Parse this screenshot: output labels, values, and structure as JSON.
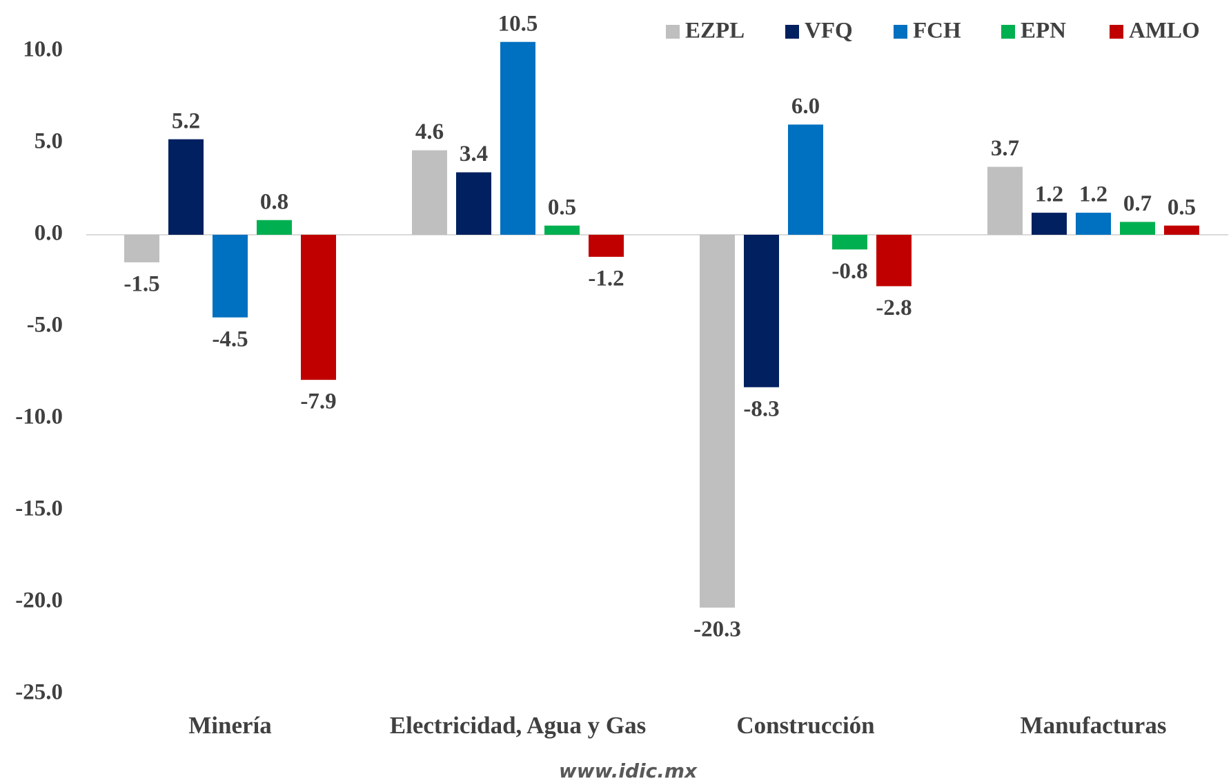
{
  "chart_data": {
    "type": "bar",
    "categories": [
      "Minería",
      "Electricidad, Agua y Gas",
      "Construcción",
      "Manufacturas"
    ],
    "series": [
      {
        "name": "EZPL",
        "color": "#bfbfbf",
        "values": [
          -1.5,
          4.6,
          -20.3,
          3.7
        ],
        "value_labels": [
          "-1.5",
          "4.6",
          "-20.3",
          "3.7"
        ]
      },
      {
        "name": "VFQ",
        "color": "#002060",
        "values": [
          5.2,
          3.4,
          -8.3,
          1.2
        ],
        "value_labels": [
          "5.2",
          "3.4",
          "-8.3",
          "1.2"
        ]
      },
      {
        "name": "FCH",
        "color": "#0070c0",
        "values": [
          -4.5,
          10.5,
          6.0,
          1.2
        ],
        "value_labels": [
          "-4.5",
          "10.5",
          "6.0",
          "1.2"
        ]
      },
      {
        "name": "EPN",
        "color": "#00b050",
        "values": [
          0.8,
          0.5,
          -0.8,
          0.7
        ],
        "value_labels": [
          "0.8",
          "0.5",
          "-0.8",
          "0.7"
        ]
      },
      {
        "name": "AMLO",
        "color": "#c00000",
        "values": [
          -7.9,
          -1.2,
          -2.8,
          0.5
        ],
        "value_labels": [
          "-7.9",
          "-1.2",
          "-2.8",
          "0.5"
        ]
      }
    ],
    "ylim": [
      -25,
      12.5
    ],
    "yticks": [
      {
        "value": 10,
        "label": "10.0"
      },
      {
        "value": 5,
        "label": "5.0"
      },
      {
        "value": 0,
        "label": "0.0"
      },
      {
        "value": -5,
        "label": "-5.0"
      },
      {
        "value": -10,
        "label": "-10.0"
      },
      {
        "value": -15,
        "label": "-15.0"
      },
      {
        "value": -20,
        "label": "-20.0"
      },
      {
        "value": -25,
        "label": "-25.0"
      }
    ],
    "grid": false,
    "legend": "top-right",
    "watermark": "www.idic.mx"
  }
}
